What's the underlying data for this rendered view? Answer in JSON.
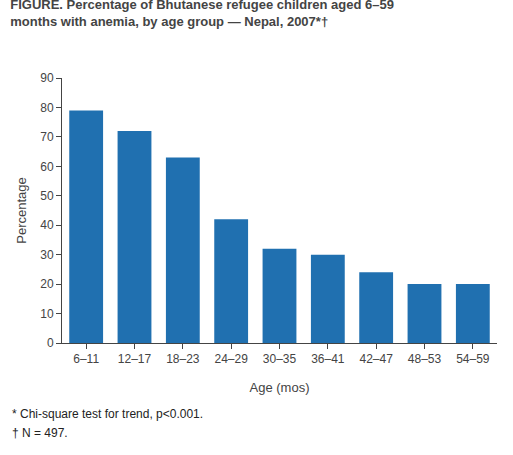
{
  "chart_data": {
    "type": "bar",
    "title": "FIGURE. Percentage of Bhutanese refugee children aged 6–59",
    "subtitle": "months with anemia, by age group — Nepal, 2007*†",
    "categories": [
      "6–11",
      "12–17",
      "18–23",
      "24–29",
      "30–35",
      "36–41",
      "42–47",
      "48–53",
      "54–59"
    ],
    "values": [
      79,
      72,
      63,
      42,
      32,
      30,
      24,
      20,
      20
    ],
    "color": "#2070b0",
    "xlabel": "Age (mos)",
    "ylabel": "Percentage",
    "ylim": [
      0,
      90
    ],
    "yticks": [
      0,
      10,
      20,
      30,
      40,
      50,
      60,
      70,
      80,
      90
    ],
    "grid": false,
    "annotations": [
      "* Chi-square test for trend, p<0.001.",
      "† N = 497."
    ]
  }
}
